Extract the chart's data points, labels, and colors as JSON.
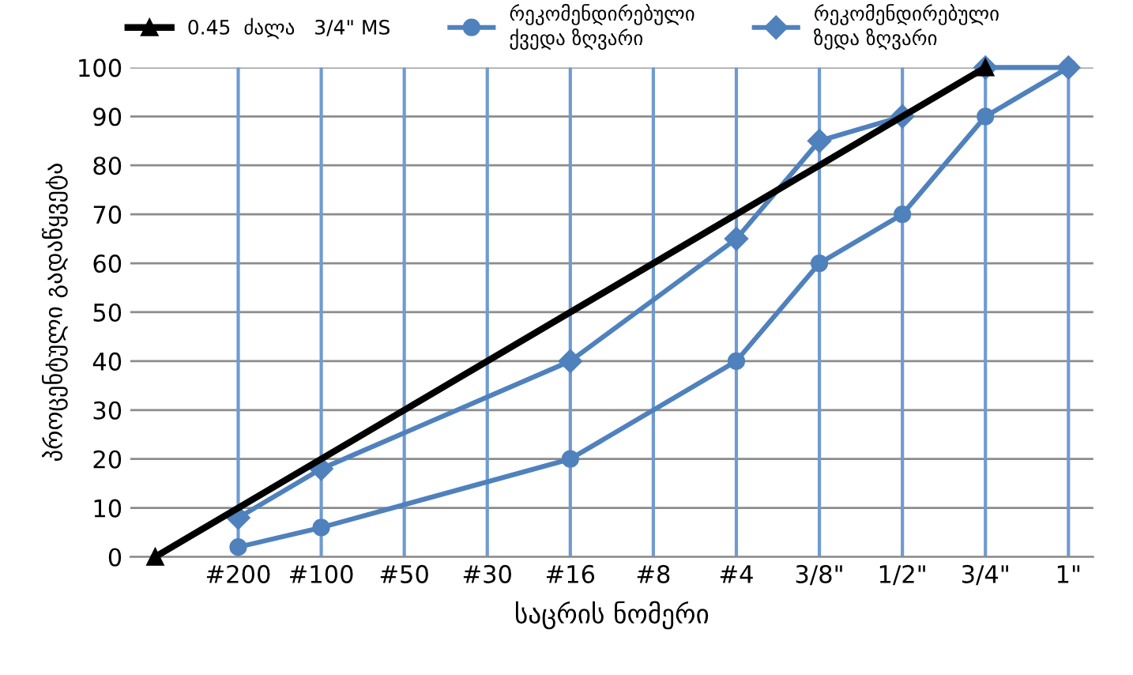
{
  "chart_data": {
    "type": "line",
    "xlabel": "საცრის ნომერი",
    "ylabel": "პროცენტული გადაწყვეტა",
    "categories": [
      null,
      "#200",
      "#100",
      "#50",
      "#30",
      "#16",
      "#8",
      "#4",
      "3/8\"",
      "1/2\"",
      "3/4\"",
      "1\""
    ],
    "ylim": [
      0,
      100
    ],
    "yticks": [
      0,
      10,
      20,
      30,
      40,
      50,
      60,
      70,
      80,
      90,
      100
    ],
    "grid": true,
    "legend": "top",
    "line_style": "solid",
    "series": [
      {
        "name": "0.45  ძალა   3/4\" MS",
        "color": "#000000",
        "marker": "triangle",
        "values": [
          0,
          null,
          null,
          null,
          null,
          null,
          null,
          null,
          null,
          null,
          100,
          null
        ]
      },
      {
        "name": "რეკომენდირებული\nქვედა ზღვარი",
        "color": "#4f81bd",
        "marker": "circle",
        "values": [
          null,
          2,
          6,
          null,
          null,
          20,
          null,
          40,
          60,
          70,
          90,
          100
        ]
      },
      {
        "name": "რეკომენდირებული\nზედა ზღვარი",
        "color": "#4f81bd",
        "marker": "diamond",
        "values": [
          null,
          8,
          18,
          null,
          null,
          40,
          null,
          65,
          85,
          90,
          100,
          100
        ]
      }
    ]
  }
}
